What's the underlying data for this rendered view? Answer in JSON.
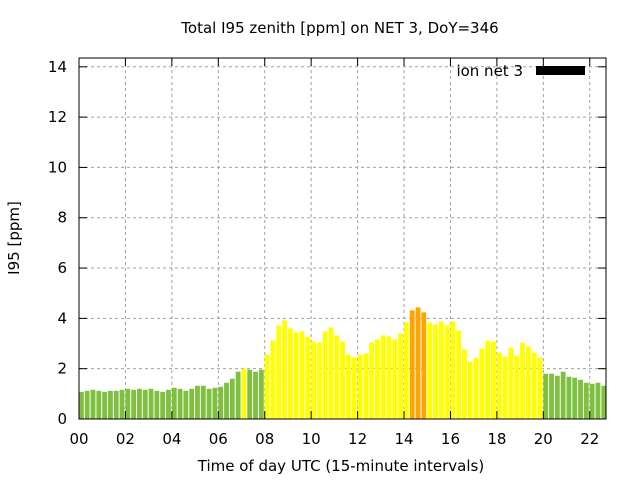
{
  "chart_data": {
    "type": "bar",
    "title": "Total I95 zenith [ppm] on NET 3, DoY=346",
    "xlabel": "Time of day UTC (15-minute intervals)",
    "ylabel": "I95 [ppm]",
    "xlim": [
      0,
      22.7
    ],
    "ylim": [
      0,
      14.35
    ],
    "xticks": [
      0,
      2,
      4,
      6,
      8,
      10,
      12,
      14,
      16,
      18,
      20,
      22
    ],
    "xtick_labels": [
      "00",
      "02",
      "04",
      "06",
      "08",
      "10",
      "12",
      "14",
      "16",
      "18",
      "20",
      "22"
    ],
    "yticks": [
      0,
      2,
      4,
      6,
      8,
      10,
      12,
      14
    ],
    "ytick_labels": [
      "0",
      "2",
      "4",
      "6",
      "8",
      "10",
      "12",
      "14"
    ],
    "grid": true,
    "legend": {
      "label": "ion net 3",
      "color": "#000000",
      "placement": "top-right"
    },
    "interval_hours": 0.25,
    "color_levels": [
      {
        "max": 1.99,
        "color": "#80c040"
      },
      {
        "max": 4.0,
        "color": "#ffff00"
      },
      {
        "max": 99,
        "color": "#ffa500"
      }
    ],
    "values": [
      1.08,
      1.12,
      1.16,
      1.12,
      1.08,
      1.12,
      1.12,
      1.16,
      1.2,
      1.16,
      1.2,
      1.16,
      1.2,
      1.12,
      1.08,
      1.16,
      1.24,
      1.2,
      1.12,
      1.2,
      1.32,
      1.32,
      1.2,
      1.24,
      1.28,
      1.44,
      1.6,
      1.88,
      2.0,
      1.96,
      1.88,
      1.96,
      2.56,
      3.12,
      3.72,
      3.92,
      3.6,
      3.44,
      3.48,
      3.28,
      3.08,
      3.04,
      3.48,
      3.64,
      3.32,
      3.08,
      2.56,
      2.44,
      2.56,
      2.6,
      3.04,
      3.16,
      3.32,
      3.28,
      3.16,
      3.4,
      3.84,
      4.32,
      4.44,
      4.24,
      3.84,
      3.76,
      3.88,
      3.72,
      3.88,
      3.52,
      2.76,
      2.28,
      2.44,
      2.8,
      3.12,
      3.08,
      2.64,
      2.48,
      2.84,
      2.52,
      3.04,
      2.88,
      2.64,
      2.44,
      1.8,
      1.8,
      1.72,
      1.88,
      1.68,
      1.64,
      1.56,
      1.44,
      1.4,
      1.44,
      1.32,
      1.4
    ]
  }
}
